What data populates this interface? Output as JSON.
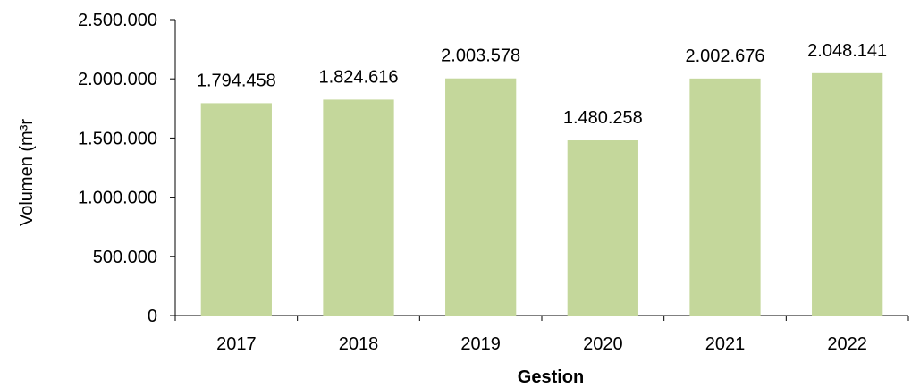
{
  "chart_data": {
    "type": "bar",
    "categories": [
      "2017",
      "2018",
      "2019",
      "2020",
      "2021",
      "2022"
    ],
    "values": [
      1794458,
      1824616,
      2003578,
      1480258,
      2002676,
      2048141
    ],
    "value_labels": [
      "1.794.458",
      "1.824.616",
      "2.003.578",
      "1.480.258",
      "2.002.676",
      "2.048.141"
    ],
    "xlabel": "Gestion",
    "ylabel": "Volumen (m³r",
    "ylim": [
      0,
      2500000
    ],
    "yticks": [
      0,
      500000,
      1000000,
      1500000,
      2000000,
      2500000
    ],
    "ytick_labels": [
      "0",
      "500.000",
      "1.000.000",
      "1.500.000",
      "2.000.000",
      "2.500.000"
    ],
    "grid": false,
    "legend": "none",
    "colors": {
      "bar": "#c4d79b",
      "axis": "#000000"
    }
  }
}
